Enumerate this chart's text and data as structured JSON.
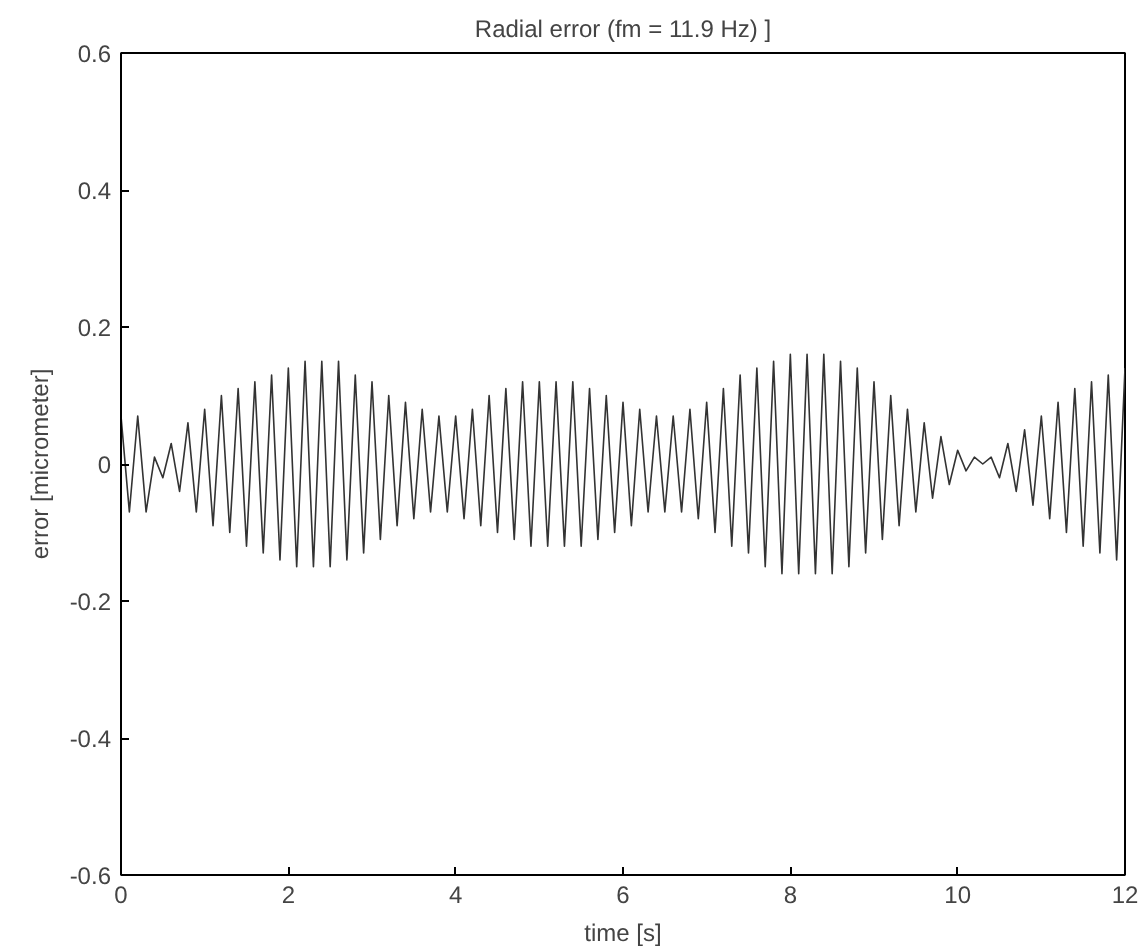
{
  "chart_data": {
    "type": "line",
    "title": "Radial error (fm = 11.9 Hz) ]",
    "xlabel": "time [s]",
    "ylabel": "error [micrometer]",
    "xlim": [
      0,
      12
    ],
    "ylim": [
      -0.6,
      0.6
    ],
    "xticks": [
      0,
      2,
      4,
      6,
      8,
      10,
      12
    ],
    "yticks": [
      -0.6,
      -0.4,
      -0.2,
      0,
      0.2,
      0.4,
      0.6
    ],
    "grid": false,
    "line_style": "solid",
    "series": [
      {
        "color": "#333333",
        "x": [
          0,
          0.1,
          0.2,
          0.3,
          0.4,
          0.5,
          0.6,
          0.7,
          0.8,
          0.9,
          1,
          1.1,
          1.2,
          1.3,
          1.4,
          1.5,
          1.6,
          1.7,
          1.8,
          1.9,
          2,
          2.1,
          2.2,
          2.3,
          2.4,
          2.5,
          2.6,
          2.7,
          2.8,
          2.9,
          3,
          3.1,
          3.2,
          3.3,
          3.4,
          3.5,
          3.6,
          3.7,
          3.8,
          3.9,
          4,
          4.1,
          4.2,
          4.3,
          4.4,
          4.5,
          4.6,
          4.7,
          4.8,
          4.9,
          5,
          5.1,
          5.2,
          5.3,
          5.4,
          5.5,
          5.6,
          5.7,
          5.8,
          5.9,
          6,
          6.1,
          6.2,
          6.3,
          6.4,
          6.5,
          6.6,
          6.7,
          6.8,
          6.9,
          7,
          7.1,
          7.2,
          7.3,
          7.4,
          7.5,
          7.6,
          7.7,
          7.8,
          7.9,
          8,
          8.1,
          8.2,
          8.3,
          8.4,
          8.5,
          8.6,
          8.7,
          8.8,
          8.9,
          9,
          9.1,
          9.2,
          9.3,
          9.4,
          9.5,
          9.6,
          9.7,
          9.8,
          9.9,
          10,
          10.1,
          10.2,
          10.3,
          10.4,
          10.5,
          10.6,
          10.7,
          10.8,
          10.9,
          11,
          11.1,
          11.2,
          11.3,
          11.4,
          11.5,
          11.6,
          11.7,
          11.8,
          11.9,
          12
        ],
        "values": [
          0.07,
          -0.07,
          0.07,
          -0.07,
          0.01,
          -0.02,
          0.03,
          -0.04,
          0.06,
          -0.07,
          0.08,
          -0.09,
          0.1,
          -0.1,
          0.11,
          -0.12,
          0.12,
          -0.13,
          0.13,
          -0.14,
          0.14,
          -0.15,
          0.15,
          -0.15,
          0.15,
          -0.15,
          0.15,
          -0.14,
          0.13,
          -0.13,
          0.12,
          -0.11,
          0.1,
          -0.09,
          0.09,
          -0.08,
          0.08,
          -0.07,
          0.07,
          -0.07,
          0.07,
          -0.08,
          0.08,
          -0.09,
          0.1,
          -0.1,
          0.11,
          -0.11,
          0.12,
          -0.12,
          0.12,
          -0.12,
          0.12,
          -0.12,
          0.12,
          -0.12,
          0.11,
          -0.11,
          0.1,
          -0.1,
          0.09,
          -0.09,
          0.08,
          -0.07,
          0.07,
          -0.07,
          0.07,
          -0.07,
          0.08,
          -0.08,
          0.09,
          -0.1,
          0.11,
          -0.12,
          0.13,
          -0.13,
          0.14,
          -0.15,
          0.15,
          -0.16,
          0.16,
          -0.16,
          0.16,
          -0.16,
          0.16,
          -0.16,
          0.15,
          -0.15,
          0.14,
          -0.13,
          0.12,
          -0.11,
          0.1,
          -0.09,
          0.08,
          -0.07,
          0.06,
          -0.05,
          0.04,
          -0.03,
          0.02,
          -0.01,
          0.01,
          0,
          0.01,
          -0.02,
          0.03,
          -0.04,
          0.05,
          -0.06,
          0.07,
          -0.08,
          0.09,
          -0.1,
          0.11,
          -0.12,
          0.12,
          -0.13,
          0.13,
          -0.14,
          0.14
        ]
      }
    ]
  }
}
